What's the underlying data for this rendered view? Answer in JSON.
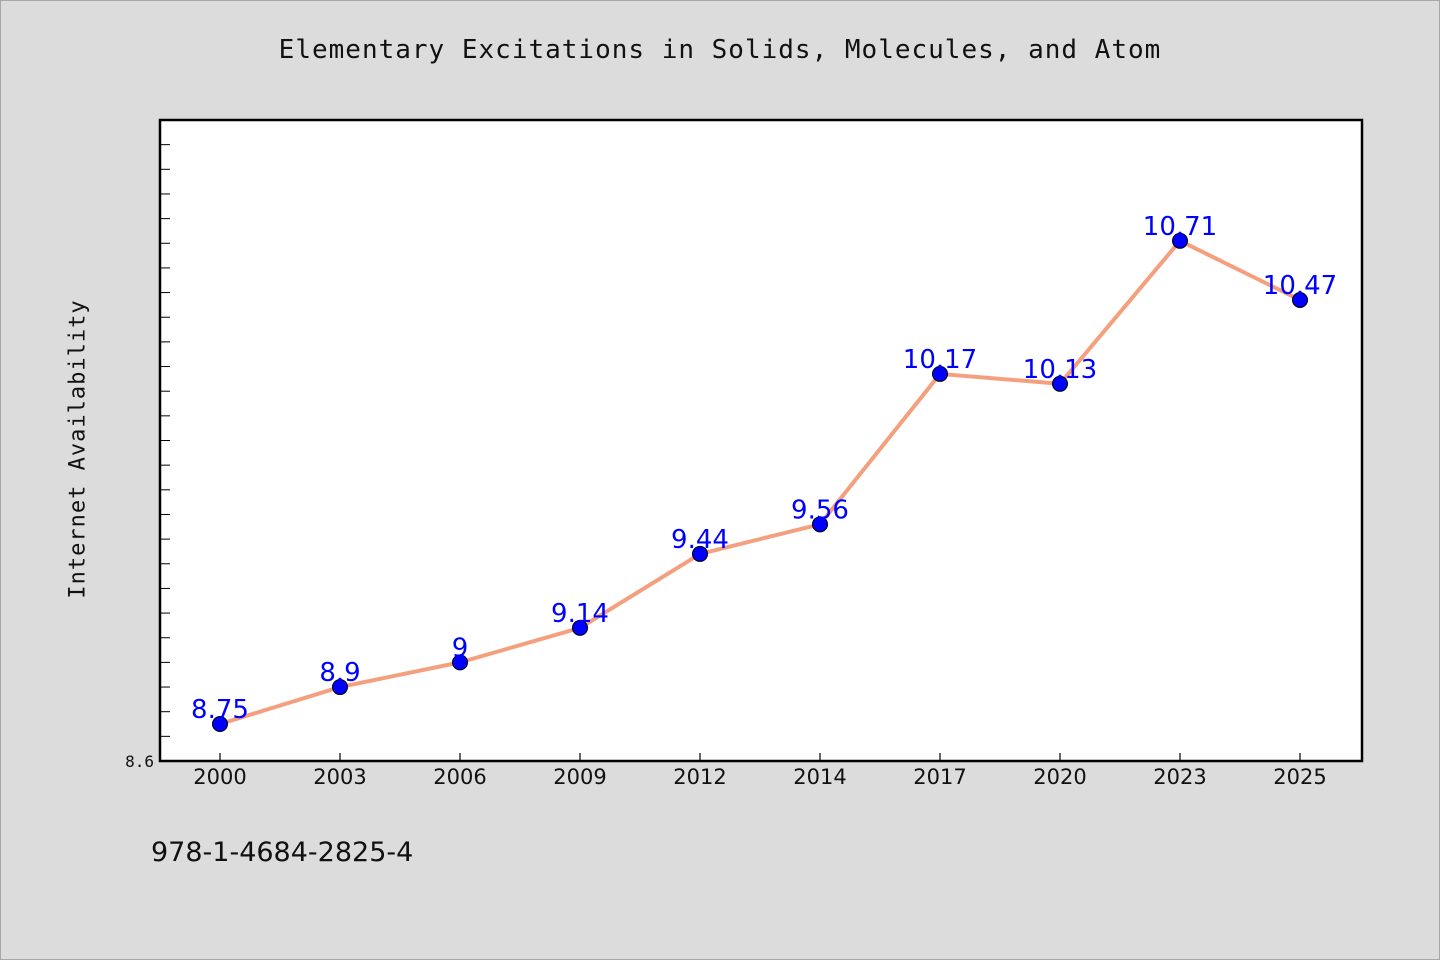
{
  "chart_data": {
    "type": "line",
    "title": "Elementary Excitations in Solids, Molecules, and Atom",
    "ylabel": "Internet Availability",
    "xlabel": "",
    "categories": [
      "2000",
      "2003",
      "2006",
      "2009",
      "2012",
      "2014",
      "2017",
      "2020",
      "2023",
      "2025"
    ],
    "series": [
      {
        "values": [
          8.75,
          8.9,
          9,
          9.14,
          9.44,
          9.56,
          10.17,
          10.13,
          10.71,
          10.47
        ],
        "labels": [
          "8.75",
          "8.9",
          "9",
          "9.14",
          "9.44",
          "9.56",
          "10.17",
          "10.13",
          "10.71",
          "10.47"
        ]
      }
    ],
    "ylim": [
      8.6,
      11.2
    ],
    "yticks": [
      8.6
    ],
    "ytick_labels": [
      "8.6"
    ],
    "y_minor_step": 0.1,
    "grid": false,
    "line_color": "#f4a07e",
    "marker_color": "#0000ff",
    "label_color": "#0000ff"
  },
  "footer": {
    "isbn": "978-1-4684-2825-4"
  }
}
